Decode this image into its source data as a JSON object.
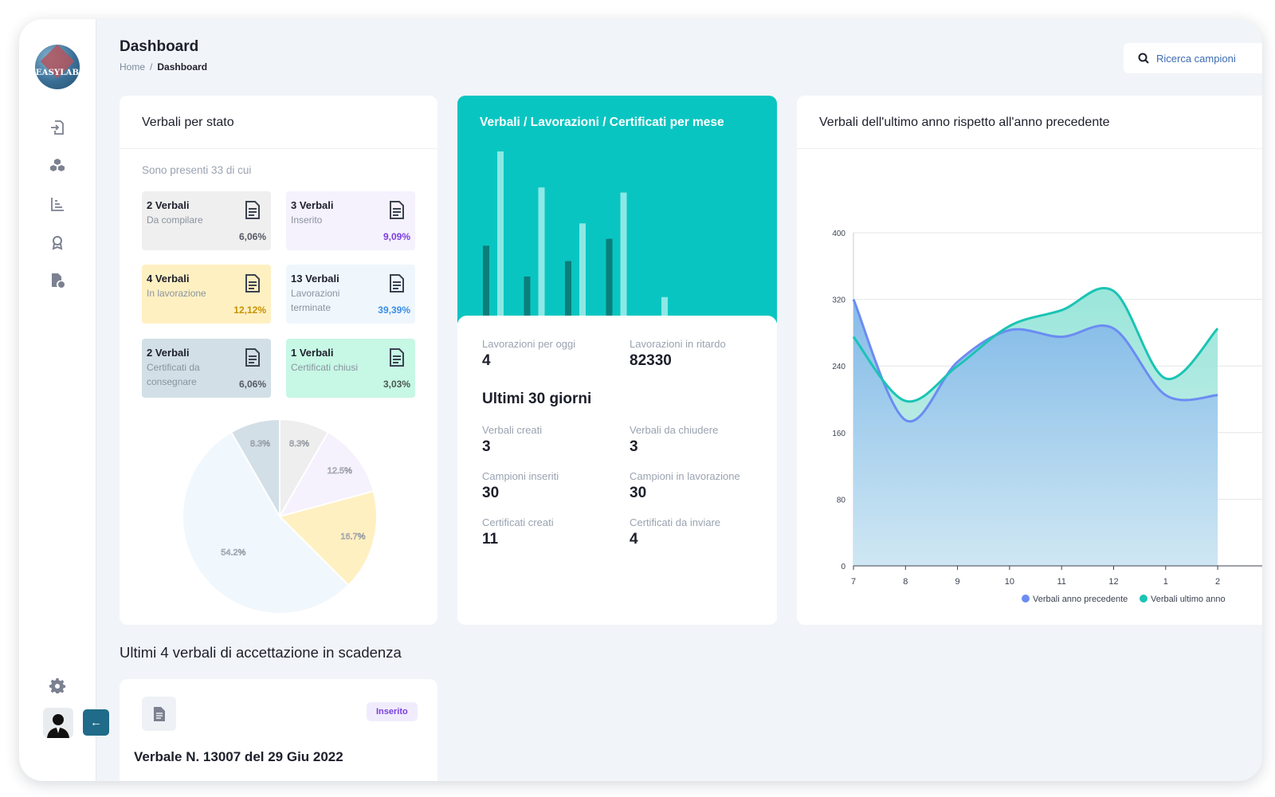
{
  "app": {
    "logo_text": "EASYLAB"
  },
  "header": {
    "title": "Dashboard",
    "breadcrumb": [
      "Home",
      "Dashboard"
    ],
    "breadcrumb_sep": "/",
    "search_placeholder": "Ricerca campioni"
  },
  "sidebar": {
    "items": [
      {
        "icon": "file-import-icon"
      },
      {
        "icon": "cubes-icon"
      },
      {
        "icon": "chart-icon"
      },
      {
        "icon": "award-icon"
      },
      {
        "icon": "file-clock-icon"
      }
    ],
    "settings_icon": "gear-icon",
    "collapse_label": "←"
  },
  "card_stato": {
    "title": "Verbali per stato",
    "intro": "Sono presenti 33 di cui",
    "boxes": [
      {
        "count": "2 Verbali",
        "label": "Da compilare",
        "pct": "6,06%",
        "bg": "#efefef",
        "color": "#555a64"
      },
      {
        "count": "3 Verbali",
        "label": "Inserito",
        "pct": "9,09%",
        "bg": "#f5f1fd",
        "color": "#7a3fe0"
      },
      {
        "count": "4 Verbali",
        "label": "In lavorazione",
        "pct": "12,12%",
        "bg": "#fff0c2",
        "color": "#c79200"
      },
      {
        "count": "13 Verbali",
        "label": "Lavorazioni terminate",
        "pct": "39,39%",
        "bg": "#eff7fd",
        "color": "#3a8ee6"
      },
      {
        "count": "2 Verbali",
        "label": "Certificati da consegnare",
        "pct": "6,06%",
        "bg": "#d2dfe6",
        "color": "#555a64"
      },
      {
        "count": "1 Verbali",
        "label": "Certificati chiusi",
        "pct": "3,03%",
        "bg": "#c7f7e5",
        "color": "#4a5a55"
      }
    ],
    "pie": [
      {
        "value": 8.3,
        "label": "8.3%",
        "color": "#eeeeee"
      },
      {
        "value": 12.5,
        "label": "12.5%",
        "color": "#f5f1fd"
      },
      {
        "value": 16.7,
        "label": "16.7%",
        "color": "#fff0c2"
      },
      {
        "value": 54.2,
        "label": "54.2%",
        "color": "#f0f7fd"
      },
      {
        "value": 8.3,
        "label": "8.3%",
        "color": "#d2dfe6"
      }
    ]
  },
  "card_mese": {
    "title": "Verbali / Lavorazioni / Certificati per mese",
    "bars": [
      {
        "dark": 0.45,
        "light": 1.0
      },
      {
        "dark": 0.27,
        "light": 0.79
      },
      {
        "dark": 0.36,
        "light": 0.58
      },
      {
        "dark": 0.49,
        "light": 0.76
      },
      {
        "dark": 0.03,
        "light": 0.15
      }
    ],
    "metrics_today": [
      {
        "label": "Lavorazioni per oggi",
        "value": "4"
      },
      {
        "label": "Lavorazioni in ritardo",
        "value": "82330"
      }
    ],
    "subhead": "Ultimi 30 giorni",
    "metrics_30": [
      {
        "label": "Verbali creati",
        "value": "3"
      },
      {
        "label": "Verbali da chiudere",
        "value": "3"
      },
      {
        "label": "Campioni inseriti",
        "value": "30"
      },
      {
        "label": "Campioni in lavorazione",
        "value": "30"
      },
      {
        "label": "Certificati creati",
        "value": "11"
      },
      {
        "label": "Certificati da inviare",
        "value": "4"
      }
    ]
  },
  "chart_data": {
    "type": "area",
    "title": "Verbali dell'ultimo anno rispetto all'anno precedente",
    "categories": [
      "7",
      "8",
      "9",
      "10",
      "11",
      "12",
      "1",
      "2"
    ],
    "ylim": [
      0,
      400
    ],
    "yticks": [
      0,
      80,
      160,
      240,
      320,
      400
    ],
    "grid": true,
    "legend_position": "bottom-right",
    "series": [
      {
        "name": "Verbali anno precedente",
        "color": "#6b8cf2",
        "values": [
          320,
          175,
          245,
          283,
          275,
          285,
          205,
          205
        ]
      },
      {
        "name": "Verbali ultimo anno",
        "color": "#1bc4b4",
        "values": [
          275,
          198,
          240,
          288,
          307,
          330,
          225,
          285
        ]
      }
    ]
  },
  "scadenza": {
    "title": "Ultimi 4 verbali di accettazione in scadenza",
    "item": {
      "badge": "Inserito",
      "title": "Verbale N. 13007 del 29 Giu 2022"
    }
  }
}
